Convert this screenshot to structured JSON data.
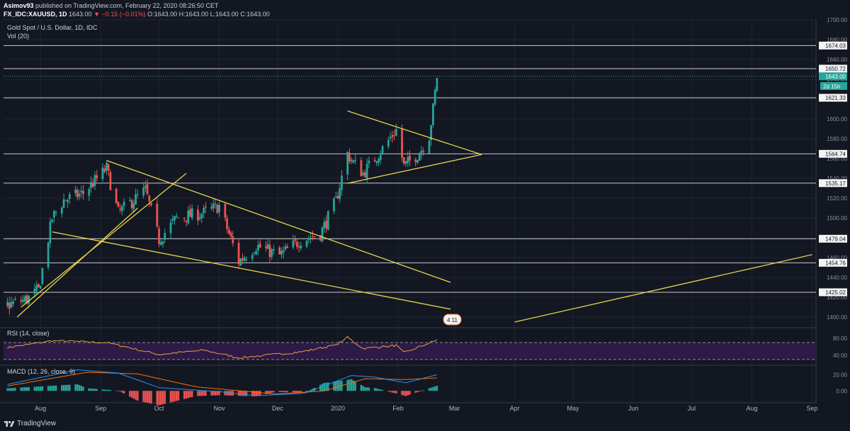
{
  "header": {
    "author": "Asimov93",
    "published": "published on TradingView.com, February 22, 2020 08:26:50 CET",
    "symbol": "FX_IDC:XAUUSD, 1D",
    "last": "1643.00",
    "change": "−0.15 (−0.01%)",
    "ohlc": "O:1643.00 H:1643.00 L:1643.00 C:1643.00"
  },
  "legend": {
    "title": "Gold Spot / U.S. Dollar, 1D, IDC",
    "vol": "Vol (20)",
    "rsi": "RSI (14, close)",
    "macd": "MACD (12, 26, close, 9)"
  },
  "badges": {
    "countdown": "2d 15h",
    "event": "4 11"
  },
  "footer": {
    "brand": "TradingView"
  },
  "colors": {
    "background": "#131722",
    "up": "#26a69a",
    "down": "#ef5350",
    "trendline": "#e8d44d",
    "level": "#c8c8c8",
    "rsi": "#e3a23b",
    "rsi_band": "#2e1a47",
    "macd": "#2196f3",
    "signal": "#ff6d00"
  },
  "chart_data": [
    {
      "type": "candlestick",
      "title": "Gold Spot / U.S. Dollar, 1D, IDC",
      "x_ticks": [
        "Aug",
        "Sep",
        "Oct",
        "Nov",
        "Dec",
        "2020",
        "Feb",
        "Mar",
        "Apr",
        "May",
        "Jun",
        "Jul",
        "Aug",
        "Sep"
      ],
      "y_ticks": [
        1400,
        1420,
        1440,
        1460,
        1480,
        1500,
        1520,
        1540,
        1560,
        1580,
        1600,
        1620,
        1640,
        1660,
        1680,
        1700
      ],
      "ylim": [
        1390,
        1700
      ],
      "horizontal_levels": [
        1674.03,
        1650.72,
        1621.33,
        1564.74,
        1535.17,
        1479.04,
        1454.76,
        1425.02
      ],
      "last_price": 1643.0,
      "close_anchors": [
        {
          "date": "2019-07-15",
          "close": 1412
        },
        {
          "date": "2019-07-25",
          "close": 1418
        },
        {
          "date": "2019-07-31",
          "close": 1427
        },
        {
          "date": "2019-08-07",
          "close": 1500
        },
        {
          "date": "2019-08-13",
          "close": 1518
        },
        {
          "date": "2019-08-23",
          "close": 1525
        },
        {
          "date": "2019-09-04",
          "close": 1550
        },
        {
          "date": "2019-09-10",
          "close": 1505
        },
        {
          "date": "2019-09-24",
          "close": 1528
        },
        {
          "date": "2019-10-01",
          "close": 1478
        },
        {
          "date": "2019-10-10",
          "close": 1500
        },
        {
          "date": "2019-10-24",
          "close": 1505
        },
        {
          "date": "2019-11-01",
          "close": 1512
        },
        {
          "date": "2019-11-11",
          "close": 1456
        },
        {
          "date": "2019-11-20",
          "close": 1472
        },
        {
          "date": "2019-12-02",
          "close": 1462
        },
        {
          "date": "2019-12-13",
          "close": 1478
        },
        {
          "date": "2019-12-23",
          "close": 1484
        },
        {
          "date": "2019-12-31",
          "close": 1517
        },
        {
          "date": "2020-01-06",
          "close": 1565
        },
        {
          "date": "2020-01-08",
          "close": 1558
        },
        {
          "date": "2020-01-14",
          "close": 1545
        },
        {
          "date": "2020-01-24",
          "close": 1570
        },
        {
          "date": "2020-01-31",
          "close": 1589
        },
        {
          "date": "2020-02-04",
          "close": 1552
        },
        {
          "date": "2020-02-12",
          "close": 1566
        },
        {
          "date": "2020-02-17",
          "close": 1583
        },
        {
          "date": "2020-02-19",
          "close": 1610
        },
        {
          "date": "2020-02-21",
          "close": 1643
        }
      ],
      "trendlines": [
        {
          "from": {
            "date": "2019-09-04",
            "price": 1558
          },
          "to": {
            "date": "2020-02-28",
            "price": 1435
          }
        },
        {
          "from": {
            "date": "2019-08-07",
            "price": 1486
          },
          "to": {
            "date": "2020-02-28",
            "price": 1408
          }
        },
        {
          "from": {
            "date": "2020-01-06",
            "price": 1608
          },
          "to": {
            "date": "2020-03-15",
            "price": 1564
          }
        },
        {
          "from": {
            "date": "2020-01-06",
            "price": 1535
          },
          "to": {
            "date": "2020-03-15",
            "price": 1564
          }
        },
        {
          "from": {
            "date": "2019-07-20",
            "price": 1400
          },
          "to": {
            "date": "2019-09-20",
            "price": 1510
          }
        },
        {
          "from": {
            "date": "2019-07-22",
            "price": 1410
          },
          "to": {
            "date": "2019-10-15",
            "price": 1545
          }
        },
        {
          "from": {
            "date": "2020-04-01",
            "price": 1395
          },
          "to": {
            "date": "2020-09-01",
            "price": 1463
          }
        }
      ]
    },
    {
      "type": "line",
      "title": "RSI (14, close)",
      "y_ticks": [
        40,
        80
      ],
      "bands": [
        30,
        70
      ],
      "ylim": [
        20,
        100
      ],
      "anchors": [
        {
          "date": "2019-07-15",
          "value": 58
        },
        {
          "date": "2019-08-07",
          "value": 74
        },
        {
          "date": "2019-09-04",
          "value": 70
        },
        {
          "date": "2019-10-01",
          "value": 42
        },
        {
          "date": "2019-10-24",
          "value": 52
        },
        {
          "date": "2019-11-11",
          "value": 34
        },
        {
          "date": "2019-12-13",
          "value": 48
        },
        {
          "date": "2019-12-31",
          "value": 64
        },
        {
          "date": "2020-01-06",
          "value": 82
        },
        {
          "date": "2020-01-14",
          "value": 56
        },
        {
          "date": "2020-01-31",
          "value": 63
        },
        {
          "date": "2020-02-04",
          "value": 46
        },
        {
          "date": "2020-02-21",
          "value": 76
        }
      ]
    },
    {
      "type": "line",
      "title": "MACD (12, 26, close, 9)",
      "y_ticks": [
        0,
        20
      ],
      "ylim": [
        -12,
        30
      ],
      "series": [
        {
          "name": "MACD",
          "anchors": [
            {
              "date": "2019-07-15",
              "value": 8
            },
            {
              "date": "2019-08-20",
              "value": 26
            },
            {
              "date": "2019-09-10",
              "value": 22
            },
            {
              "date": "2019-10-01",
              "value": 4
            },
            {
              "date": "2019-11-01",
              "value": -1
            },
            {
              "date": "2019-11-20",
              "value": -6
            },
            {
              "date": "2019-12-15",
              "value": -3
            },
            {
              "date": "2020-01-08",
              "value": 19
            },
            {
              "date": "2020-01-20",
              "value": 17
            },
            {
              "date": "2020-02-05",
              "value": 10
            },
            {
              "date": "2020-02-21",
              "value": 20
            }
          ]
        },
        {
          "name": "Signal",
          "anchors": [
            {
              "date": "2019-07-15",
              "value": 6
            },
            {
              "date": "2019-08-25",
              "value": 23
            },
            {
              "date": "2019-09-20",
              "value": 21
            },
            {
              "date": "2019-10-20",
              "value": 5
            },
            {
              "date": "2019-11-30",
              "value": -4
            },
            {
              "date": "2019-12-25",
              "value": 0
            },
            {
              "date": "2020-01-15",
              "value": 15
            },
            {
              "date": "2020-02-05",
              "value": 14
            },
            {
              "date": "2020-02-21",
              "value": 16
            }
          ]
        }
      ]
    }
  ]
}
